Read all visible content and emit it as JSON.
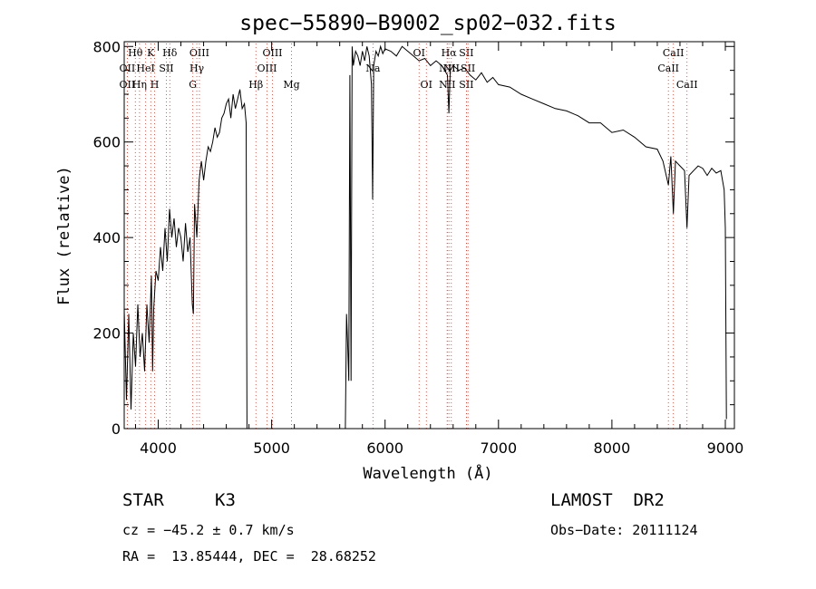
{
  "chart_data": {
    "type": "line",
    "title": "spec−55890−B9002_sp02−032.fits",
    "xlabel": "Wavelength (Å)",
    "ylabel": "Flux (relative)",
    "xlim": [
      3700,
      9080
    ],
    "ylim": [
      0,
      810
    ],
    "xticks": [
      4000,
      5000,
      6000,
      7000,
      8000,
      9000
    ],
    "yticks": [
      0,
      200,
      400,
      600,
      800
    ],
    "grid": false,
    "series": [
      {
        "segments": [
          [
            [
              3700,
              250
            ],
            [
              3720,
              60
            ],
            [
              3740,
              240
            ],
            [
              3760,
              40
            ],
            [
              3780,
              200
            ],
            [
              3800,
              130
            ],
            [
              3820,
              260
            ],
            [
              3840,
              150
            ],
            [
              3860,
              200
            ],
            [
              3880,
              120
            ],
            [
              3900,
              260
            ],
            [
              3920,
              180
            ],
            [
              3940,
              320
            ],
            [
              3950,
              120
            ],
            [
              3960,
              250
            ],
            [
              3980,
              330
            ],
            [
              4000,
              310
            ],
            [
              4020,
              380
            ],
            [
              4040,
              330
            ],
            [
              4060,
              420
            ],
            [
              4080,
              350
            ],
            [
              4100,
              460
            ],
            [
              4120,
              400
            ],
            [
              4140,
              440
            ],
            [
              4160,
              380
            ],
            [
              4180,
              420
            ],
            [
              4200,
              400
            ],
            [
              4220,
              350
            ],
            [
              4240,
              430
            ],
            [
              4260,
              370
            ],
            [
              4280,
              400
            ],
            [
              4300,
              260
            ],
            [
              4310,
              240
            ],
            [
              4320,
              470
            ],
            [
              4340,
              400
            ],
            [
              4360,
              520
            ],
            [
              4380,
              560
            ],
            [
              4400,
              520
            ],
            [
              4420,
              560
            ],
            [
              4440,
              590
            ],
            [
              4460,
              580
            ],
            [
              4480,
              600
            ],
            [
              4500,
              630
            ],
            [
              4520,
              610
            ],
            [
              4540,
              620
            ],
            [
              4560,
              650
            ],
            [
              4580,
              660
            ],
            [
              4600,
              680
            ],
            [
              4620,
              690
            ],
            [
              4640,
              650
            ],
            [
              4660,
              700
            ],
            [
              4680,
              670
            ],
            [
              4700,
              690
            ],
            [
              4720,
              710
            ],
            [
              4740,
              670
            ],
            [
              4760,
              680
            ],
            [
              4775,
              640
            ],
            [
              4782,
              0
            ]
          ],
          [
            [
              5650,
              0
            ],
            [
              5660,
              240
            ],
            [
              5670,
              180
            ],
            [
              5680,
              100
            ],
            [
              5690,
              740
            ],
            [
              5700,
              100
            ],
            [
              5710,
              800
            ],
            [
              5720,
              760
            ],
            [
              5740,
              790
            ],
            [
              5760,
              780
            ],
            [
              5780,
              760
            ],
            [
              5800,
              790
            ],
            [
              5820,
              770
            ],
            [
              5840,
              800
            ],
            [
              5860,
              780
            ],
            [
              5880,
              720
            ],
            [
              5890,
              480
            ],
            [
              5900,
              760
            ],
            [
              5920,
              790
            ],
            [
              5940,
              780
            ],
            [
              5960,
              800
            ],
            [
              5980,
              785
            ],
            [
              6000,
              795
            ],
            [
              6050,
              790
            ],
            [
              6100,
              780
            ],
            [
              6150,
              800
            ],
            [
              6200,
              790
            ],
            [
              6250,
              780
            ],
            [
              6300,
              770
            ],
            [
              6350,
              775
            ],
            [
              6400,
              760
            ],
            [
              6450,
              770
            ],
            [
              6500,
              760
            ],
            [
              6550,
              740
            ],
            [
              6563,
              660
            ],
            [
              6575,
              750
            ],
            [
              6600,
              760
            ],
            [
              6650,
              750
            ],
            [
              6700,
              755
            ],
            [
              6750,
              740
            ],
            [
              6800,
              730
            ],
            [
              6850,
              745
            ],
            [
              6900,
              725
            ],
            [
              6950,
              735
            ],
            [
              7000,
              720
            ],
            [
              7100,
              715
            ],
            [
              7200,
              700
            ],
            [
              7300,
              690
            ],
            [
              7400,
              680
            ],
            [
              7500,
              670
            ],
            [
              7600,
              665
            ],
            [
              7700,
              655
            ],
            [
              7800,
              640
            ],
            [
              7900,
              640
            ],
            [
              8000,
              620
            ],
            [
              8100,
              625
            ],
            [
              8200,
              610
            ],
            [
              8300,
              590
            ],
            [
              8400,
              585
            ],
            [
              8450,
              560
            ],
            [
              8498,
              510
            ],
            [
              8520,
              570
            ],
            [
              8542,
              450
            ],
            [
              8560,
              560
            ],
            [
              8600,
              550
            ],
            [
              8640,
              540
            ],
            [
              8662,
              420
            ],
            [
              8680,
              530
            ],
            [
              8720,
              540
            ],
            [
              8760,
              550
            ],
            [
              8800,
              545
            ],
            [
              8840,
              530
            ],
            [
              8880,
              545
            ],
            [
              8920,
              535
            ],
            [
              8960,
              540
            ],
            [
              8990,
              500
            ],
            [
              9000,
              420
            ],
            [
              9010,
              20
            ]
          ]
        ]
      }
    ],
    "lines": [
      {
        "label": "Hθ",
        "wl": 3798,
        "row": 0
      },
      {
        "label": "OII",
        "wl": 3727,
        "row": 1
      },
      {
        "label": "OII",
        "wl": 3727,
        "row": 2
      },
      {
        "label": "K",
        "wl": 3934,
        "row": 0
      },
      {
        "label": "HeI",
        "wl": 3889,
        "row": 1
      },
      {
        "label": "Hη",
        "wl": 3835,
        "row": 2
      },
      {
        "label": "H",
        "wl": 3968,
        "row": 2
      },
      {
        "label": "Hδ",
        "wl": 4102,
        "row": 0
      },
      {
        "label": "SII",
        "wl": 4072,
        "row": 1
      },
      {
        "label": "OIII",
        "wl": 4363,
        "row": 0
      },
      {
        "label": "Hγ",
        "wl": 4340,
        "row": 1
      },
      {
        "label": "G",
        "wl": 4305,
        "row": 2
      },
      {
        "label": "Hβ",
        "wl": 4861,
        "row": 2
      },
      {
        "label": "OIII",
        "wl": 5007,
        "row": 0
      },
      {
        "label": "OIII",
        "wl": 4959,
        "row": 1
      },
      {
        "label": "Mg",
        "wl": 5175,
        "row": 2
      },
      {
        "label": "Na",
        "wl": 5893,
        "row": 1
      },
      {
        "label": "OI",
        "wl": 6300,
        "row": 0
      },
      {
        "label": "OI",
        "wl": 6364,
        "row": 2
      },
      {
        "label": "Hα",
        "wl": 6563,
        "row": 0
      },
      {
        "label": "SII",
        "wl": 6717,
        "row": 0
      },
      {
        "label": "NII",
        "wl": 6548,
        "row": 1
      },
      {
        "label": "NII",
        "wl": 6584,
        "row": 1
      },
      {
        "label": "SII",
        "wl": 6731,
        "row": 1
      },
      {
        "label": "NII",
        "wl": 6548,
        "row": 2
      },
      {
        "label": "SII",
        "wl": 6717,
        "row": 2
      },
      {
        "label": "CaII",
        "wl": 8542,
        "row": 0
      },
      {
        "label": "CaII",
        "wl": 8498,
        "row": 1
      },
      {
        "label": "CaII",
        "wl": 8662,
        "row": 2
      }
    ]
  },
  "info": {
    "class": "STAR",
    "subclass": "K3",
    "survey": "LAMOST  DR2",
    "cz": "cz = −45.2 ± 0.7 km/s",
    "obsdate": "Obs−Date: 20111124",
    "radec": "RA =  13.85444, DEC =  28.68252"
  }
}
